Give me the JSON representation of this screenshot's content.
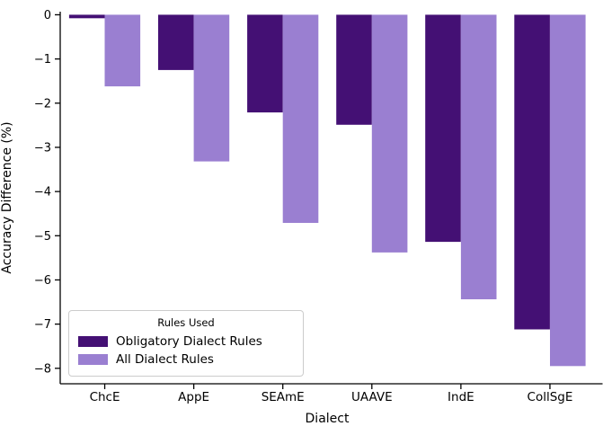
{
  "figure": {
    "background": "#ffffff",
    "axis_color": "#000000"
  },
  "chart_data": {
    "type": "bar",
    "title": "",
    "xlabel": "Dialect",
    "ylabel": "Accuracy Difference (%)",
    "categories": [
      "ChcE",
      "AppE",
      "SEAmE",
      "UAAVE",
      "IndE",
      "CollSgE"
    ],
    "series": [
      {
        "name": "Obligatory Dialect Rules",
        "color": "#441074",
        "values": [
          -0.08,
          -1.25,
          -2.21,
          -2.49,
          -5.14,
          -7.12
        ]
      },
      {
        "name": "All Dialect Rules",
        "color": "#9a7fd1",
        "values": [
          -1.62,
          -3.32,
          -4.71,
          -5.38,
          -6.44,
          -7.95
        ]
      }
    ],
    "ylim": [
      -8.35,
      0.07
    ],
    "yticks": [
      0,
      -1,
      -2,
      -3,
      -4,
      -5,
      -6,
      -7,
      -8
    ],
    "ytick_labels": [
      "0",
      "−1",
      "−2",
      "−3",
      "−4",
      "−5",
      "−6",
      "−7",
      "−8"
    ],
    "grid": false,
    "legend": {
      "title": "Rules Used",
      "position": "lower left"
    }
  }
}
